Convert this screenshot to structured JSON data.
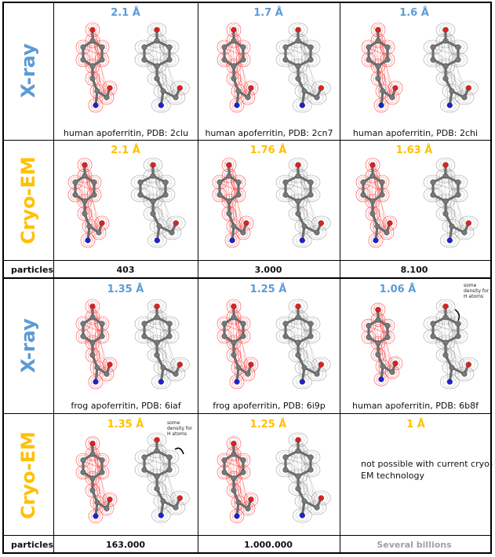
{
  "colors": {
    "xray": "#5b9bd5",
    "cryoem": "#ffc000",
    "red_mesh": "#ff2020",
    "grey_mesh": "#9a9a9a",
    "grey_text": "#a0a0a0"
  },
  "row_labels": {
    "xray": "X-ray",
    "cryoem": "Cryo-EM",
    "particles": "particles"
  },
  "top": {
    "xray": [
      {
        "resolution": "2.1 Å",
        "caption": "human apoferritin, PDB: 2clu"
      },
      {
        "resolution": "1.7 Å",
        "caption": "human apoferritin, PDB: 2cn7"
      },
      {
        "resolution": "1.6 Å",
        "caption": "human apoferritin, PDB: 2chi"
      }
    ],
    "cryoem": [
      {
        "resolution": "2.1 Å"
      },
      {
        "resolution": "1.76 Å"
      },
      {
        "resolution": "1.63 Å"
      }
    ],
    "particles": [
      "403",
      "3.000",
      "8.100"
    ]
  },
  "bottom": {
    "xray": [
      {
        "resolution": "1.35 Å",
        "caption": "frog apoferritin, PDB: 6iaf"
      },
      {
        "resolution": "1.25 Å",
        "caption": "frog apoferritin, PDB: 6i9p"
      },
      {
        "resolution": "1.06 Å",
        "caption": "human apoferritin, PDB: 6b8f",
        "note": "some density for H atoms"
      }
    ],
    "cryoem": [
      {
        "resolution": "1.35 Å",
        "note": "some density for H atoms"
      },
      {
        "resolution": "1.25 Å"
      },
      {
        "resolution": "1 Å",
        "text": "not possible with current cryo-EM technology"
      }
    ],
    "particles": [
      "163.000",
      "1.000.000",
      "Several billions"
    ]
  }
}
